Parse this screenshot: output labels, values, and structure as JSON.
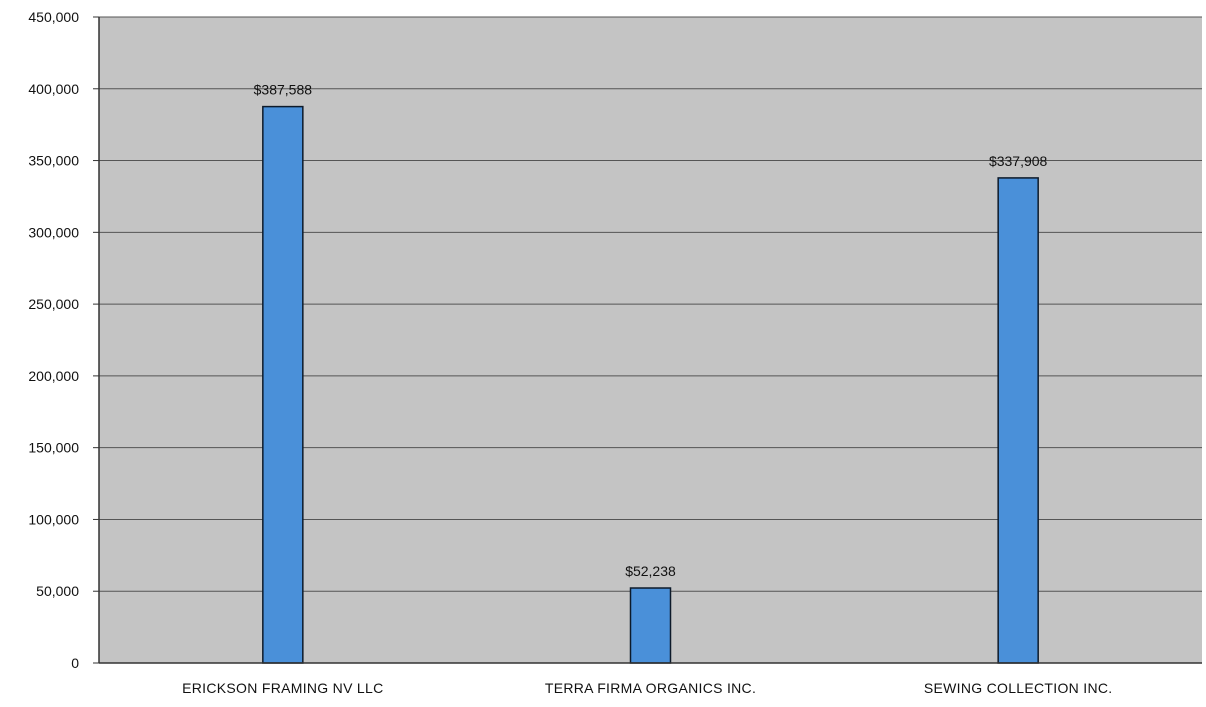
{
  "chart_data": {
    "type": "bar",
    "title": "",
    "xlabel": "",
    "ylabel": "",
    "categories": [
      "ERICKSON FRAMING NV LLC",
      "TERRA FIRMA ORGANICS INC.",
      "SEWING COLLECTION INC."
    ],
    "values": [
      387588,
      52238,
      337908
    ],
    "data_labels": [
      "$387,588",
      "$52,238",
      "$337,908"
    ],
    "ylim": [
      0,
      450000
    ],
    "yticks": [
      0,
      50000,
      100000,
      150000,
      200000,
      250000,
      300000,
      350000,
      400000,
      450000
    ],
    "ytick_labels": [
      "0",
      "50,000",
      "100,000",
      "150,000",
      "200,000",
      "250,000",
      "300,000",
      "350,000",
      "400,000",
      "450,000"
    ],
    "grid": true,
    "legend": "none",
    "colors": {
      "bar": "#4a90d9",
      "bar_edge": "#0d1a2a",
      "plot_background": "#c4c4c4",
      "gridline": "#555555",
      "axis": "#333333"
    }
  }
}
